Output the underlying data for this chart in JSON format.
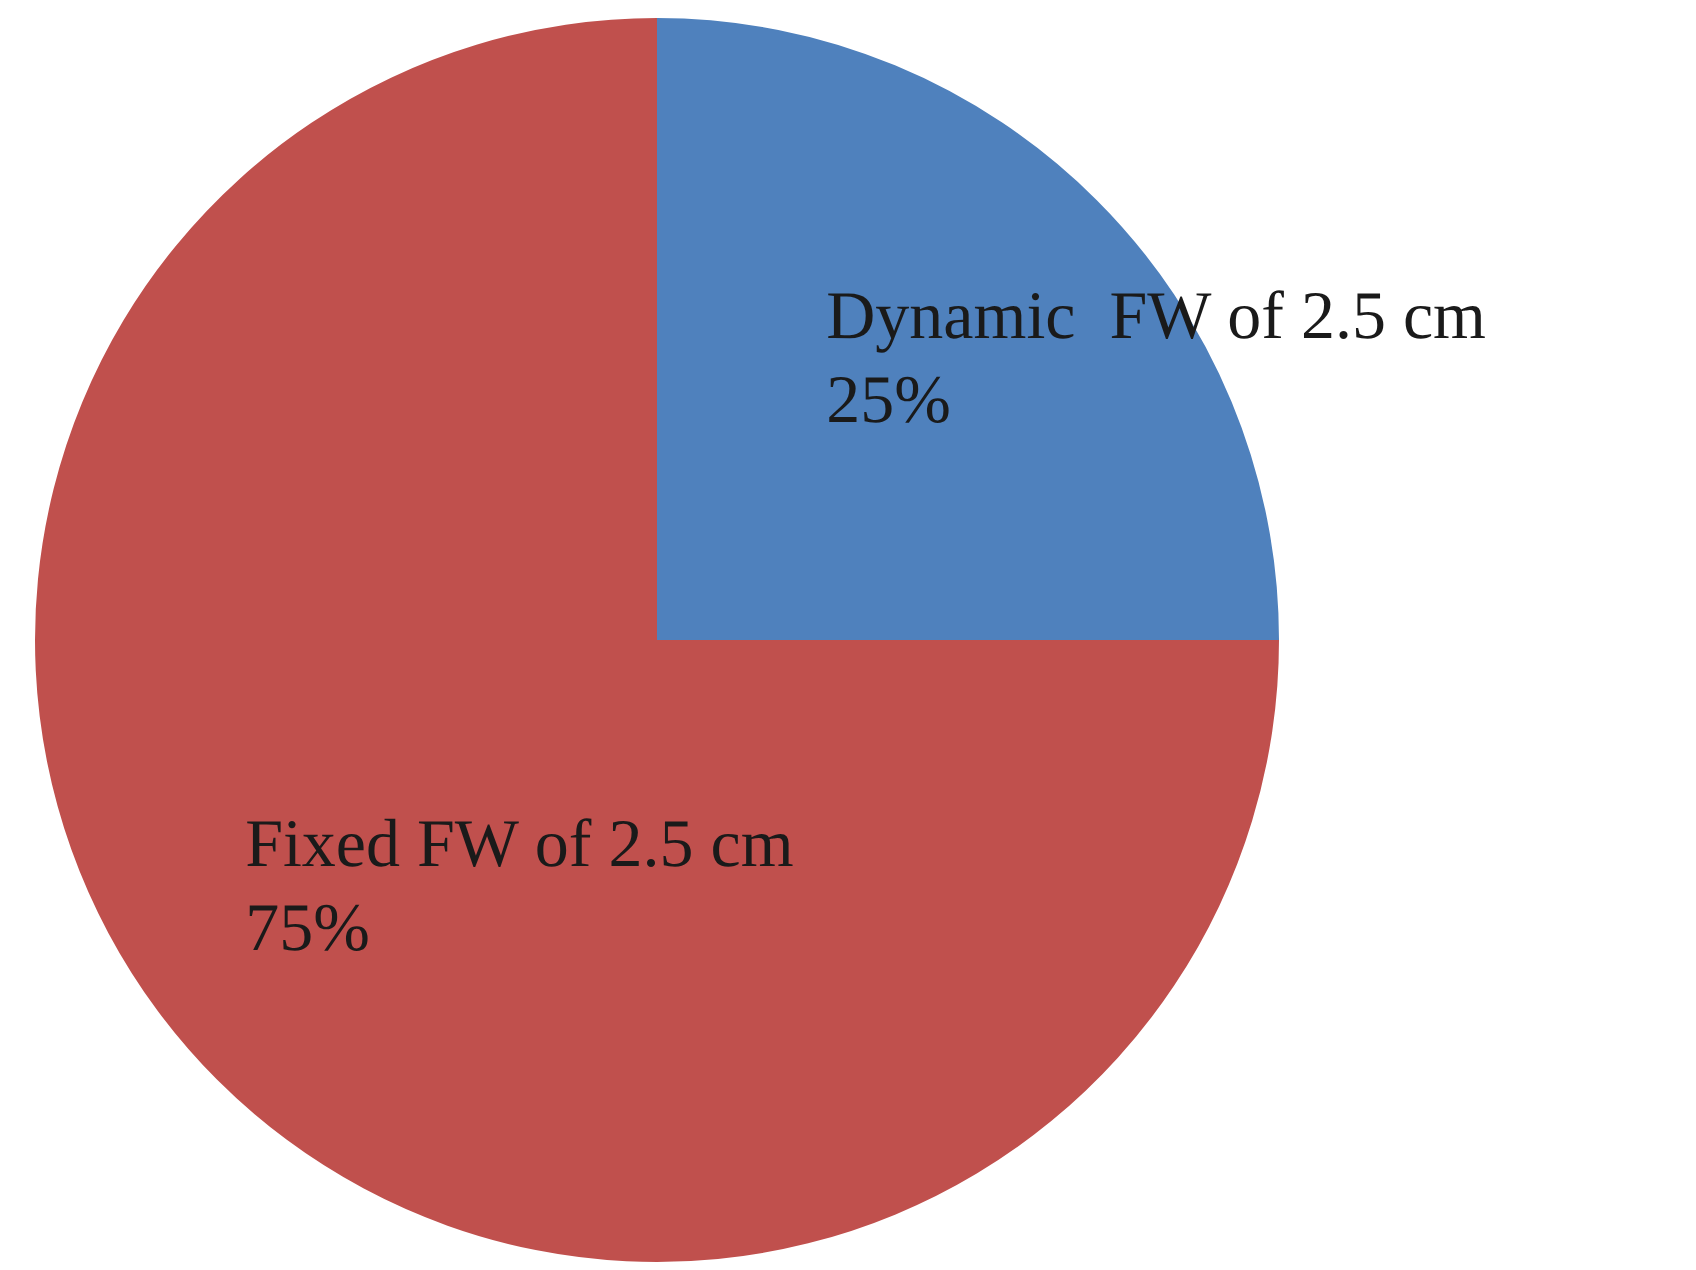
{
  "chart_data": {
    "type": "pie",
    "categories": [
      "Dynamic  FW of 2.5 cm",
      "Fixed FW of 2.5 cm"
    ],
    "values": [
      25,
      75
    ],
    "colors": [
      "#4f81bd",
      "#c0504d"
    ],
    "value_labels": [
      "25%",
      "75%"
    ],
    "legend": false
  }
}
